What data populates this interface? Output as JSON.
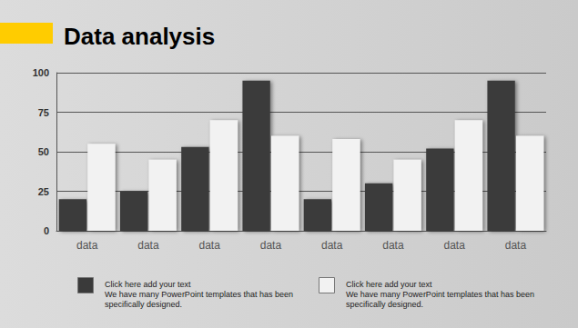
{
  "chart_data": {
    "type": "bar",
    "title": "Data analysis",
    "categories": [
      "data",
      "data",
      "data",
      "data",
      "data",
      "data",
      "data",
      "data"
    ],
    "series": [
      {
        "name": "Click here add your text",
        "color": "#3a3a3a",
        "values": [
          20,
          25,
          53,
          95,
          20,
          30,
          52,
          95
        ]
      },
      {
        "name": "Click here add your text",
        "color": "#f2f2f2",
        "values": [
          55,
          45,
          70,
          60,
          58,
          45,
          70,
          60
        ]
      }
    ],
    "annotations": [
      "We have many PowerPoint templates that has been specifically designed.",
      "We have many PowerPoint templates that has been specifically designed."
    ],
    "ylim": [
      0,
      100
    ],
    "yticks": [
      0,
      25,
      50,
      75,
      100
    ],
    "grid": true,
    "legend": "bottom"
  }
}
